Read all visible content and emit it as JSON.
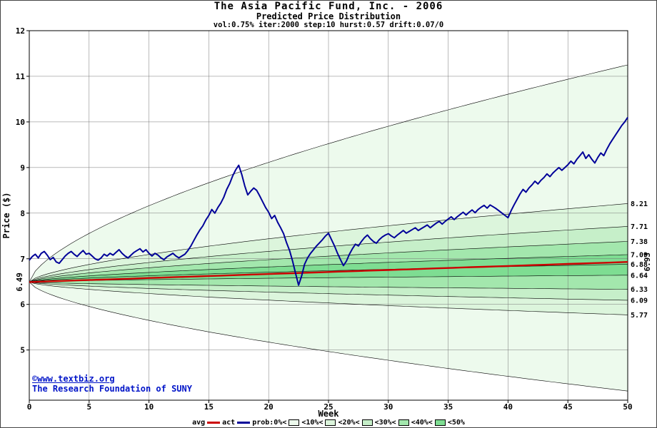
{
  "title": "The Asia Pacific Fund, Inc. - 2006",
  "subtitle": "Predicted Price Distribution",
  "params": "vol:0.75% iter:2000 step:10 hurst:0.57 drift:0.07/0",
  "watermark": {
    "line1": "©www.textbiz.org",
    "line2": "The Research Foundation of SUNY"
  },
  "legend": {
    "avg_label": "avg",
    "act_label": "act",
    "prob_label": "prob:0%<",
    "band_labels": [
      "<10%<",
      "<20%<",
      "<30%<",
      "<40%<",
      "<50%"
    ]
  },
  "chart_data": {
    "type": "line",
    "title": "The Asia Pacific Fund, Inc. - 2006",
    "subtitle": "Predicted Price Distribution",
    "xlabel": "Week",
    "ylabel": "Price ($)",
    "xlim": [
      0,
      50
    ],
    "ylim": [
      3.9,
      12
    ],
    "x_ticks": [
      0,
      5,
      10,
      15,
      20,
      25,
      30,
      35,
      40,
      45,
      50
    ],
    "y_ticks": [
      5,
      6,
      7,
      8,
      9,
      10,
      11,
      12
    ],
    "grid": true,
    "legend_position": "bottom",
    "start_price": 6.49,
    "start_label": "6.49",
    "avg_end": 6.93,
    "avg_end_label": "6.93",
    "envelope_end": [
      11.25,
      4.1
    ],
    "band_ends": [
      8.21,
      7.71,
      7.38,
      7.09,
      6.88,
      6.64,
      6.33,
      6.09,
      5.77
    ],
    "band_end_labels": [
      "8.21",
      "7.71",
      "7.38",
      "7.09",
      "6.88",
      "6.64",
      "6.33",
      "6.09",
      "5.77"
    ],
    "fan_exponent": 0.65,
    "band_colors": [
      "#edfaed",
      "#dcf5dc",
      "#c6efc9",
      "#a3e7ad",
      "#7edd92"
    ],
    "avg_color": "#cc0000",
    "act_color": "#000099",
    "series": [
      {
        "name": "avg",
        "start": 6.49,
        "end": 6.93
      },
      {
        "name": "act",
        "points_key": "actual_series"
      }
    ],
    "actual_series": [
      [
        0,
        6.97
      ],
      [
        0.25,
        7.05
      ],
      [
        0.5,
        7.1
      ],
      [
        0.75,
        7.02
      ],
      [
        1,
        7.12
      ],
      [
        1.25,
        7.16
      ],
      [
        1.5,
        7.08
      ],
      [
        1.75,
        6.98
      ],
      [
        2,
        7.03
      ],
      [
        2.25,
        6.93
      ],
      [
        2.5,
        6.9
      ],
      [
        2.75,
        6.98
      ],
      [
        3,
        7.06
      ],
      [
        3.25,
        7.12
      ],
      [
        3.5,
        7.16
      ],
      [
        3.75,
        7.1
      ],
      [
        4,
        7.05
      ],
      [
        4.25,
        7.12
      ],
      [
        4.5,
        7.18
      ],
      [
        4.75,
        7.1
      ],
      [
        5,
        7.12
      ],
      [
        5.25,
        7.06
      ],
      [
        5.5,
        7.0
      ],
      [
        5.75,
        6.97
      ],
      [
        6,
        7.02
      ],
      [
        6.25,
        7.1
      ],
      [
        6.5,
        7.06
      ],
      [
        6.75,
        7.12
      ],
      [
        7,
        7.08
      ],
      [
        7.25,
        7.14
      ],
      [
        7.5,
        7.2
      ],
      [
        7.75,
        7.12
      ],
      [
        8,
        7.06
      ],
      [
        8.25,
        7.02
      ],
      [
        8.5,
        7.08
      ],
      [
        8.75,
        7.14
      ],
      [
        9,
        7.18
      ],
      [
        9.25,
        7.22
      ],
      [
        9.5,
        7.15
      ],
      [
        9.75,
        7.2
      ],
      [
        10,
        7.12
      ],
      [
        10.25,
        7.06
      ],
      [
        10.5,
        7.12
      ],
      [
        10.75,
        7.08
      ],
      [
        11,
        7.02
      ],
      [
        11.25,
        6.98
      ],
      [
        11.5,
        7.04
      ],
      [
        11.75,
        7.08
      ],
      [
        12,
        7.12
      ],
      [
        12.25,
        7.06
      ],
      [
        12.5,
        7.02
      ],
      [
        12.75,
        7.06
      ],
      [
        13,
        7.1
      ],
      [
        13.25,
        7.18
      ],
      [
        13.5,
        7.28
      ],
      [
        13.75,
        7.4
      ],
      [
        14,
        7.52
      ],
      [
        14.25,
        7.63
      ],
      [
        14.5,
        7.72
      ],
      [
        14.75,
        7.85
      ],
      [
        15,
        7.95
      ],
      [
        15.25,
        8.08
      ],
      [
        15.5,
        8.0
      ],
      [
        15.75,
        8.12
      ],
      [
        16,
        8.22
      ],
      [
        16.25,
        8.35
      ],
      [
        16.5,
        8.52
      ],
      [
        16.75,
        8.65
      ],
      [
        17,
        8.82
      ],
      [
        17.25,
        8.95
      ],
      [
        17.5,
        9.05
      ],
      [
        17.75,
        8.85
      ],
      [
        18,
        8.6
      ],
      [
        18.25,
        8.4
      ],
      [
        18.5,
        8.48
      ],
      [
        18.75,
        8.55
      ],
      [
        19,
        8.5
      ],
      [
        19.25,
        8.38
      ],
      [
        19.5,
        8.25
      ],
      [
        19.75,
        8.12
      ],
      [
        20,
        8.02
      ],
      [
        20.25,
        7.88
      ],
      [
        20.5,
        7.95
      ],
      [
        20.75,
        7.8
      ],
      [
        21,
        7.68
      ],
      [
        21.25,
        7.55
      ],
      [
        21.5,
        7.35
      ],
      [
        21.75,
        7.18
      ],
      [
        22,
        6.95
      ],
      [
        22.25,
        6.68
      ],
      [
        22.5,
        6.42
      ],
      [
        22.75,
        6.62
      ],
      [
        23,
        6.88
      ],
      [
        23.25,
        7.02
      ],
      [
        23.5,
        7.12
      ],
      [
        23.75,
        7.2
      ],
      [
        24,
        7.28
      ],
      [
        24.25,
        7.35
      ],
      [
        24.5,
        7.42
      ],
      [
        24.75,
        7.5
      ],
      [
        25,
        7.56
      ],
      [
        25.25,
        7.42
      ],
      [
        25.5,
        7.28
      ],
      [
        25.75,
        7.12
      ],
      [
        26,
        6.98
      ],
      [
        26.25,
        6.85
      ],
      [
        26.5,
        6.95
      ],
      [
        26.75,
        7.1
      ],
      [
        27,
        7.22
      ],
      [
        27.25,
        7.32
      ],
      [
        27.5,
        7.28
      ],
      [
        27.75,
        7.38
      ],
      [
        28,
        7.46
      ],
      [
        28.25,
        7.52
      ],
      [
        28.5,
        7.44
      ],
      [
        28.75,
        7.38
      ],
      [
        29,
        7.34
      ],
      [
        29.25,
        7.42
      ],
      [
        29.5,
        7.48
      ],
      [
        29.75,
        7.52
      ],
      [
        30,
        7.55
      ],
      [
        30.25,
        7.5
      ],
      [
        30.5,
        7.46
      ],
      [
        30.75,
        7.52
      ],
      [
        31,
        7.57
      ],
      [
        31.25,
        7.62
      ],
      [
        31.5,
        7.56
      ],
      [
        31.75,
        7.6
      ],
      [
        32,
        7.64
      ],
      [
        32.25,
        7.68
      ],
      [
        32.5,
        7.62
      ],
      [
        32.75,
        7.66
      ],
      [
        33,
        7.7
      ],
      [
        33.25,
        7.74
      ],
      [
        33.5,
        7.68
      ],
      [
        33.75,
        7.73
      ],
      [
        34,
        7.78
      ],
      [
        34.25,
        7.82
      ],
      [
        34.5,
        7.76
      ],
      [
        34.75,
        7.82
      ],
      [
        35,
        7.87
      ],
      [
        35.25,
        7.92
      ],
      [
        35.5,
        7.86
      ],
      [
        35.75,
        7.92
      ],
      [
        36,
        7.97
      ],
      [
        36.25,
        8.02
      ],
      [
        36.5,
        7.96
      ],
      [
        36.75,
        8.02
      ],
      [
        37,
        8.07
      ],
      [
        37.25,
        8.01
      ],
      [
        37.5,
        8.08
      ],
      [
        37.75,
        8.13
      ],
      [
        38,
        8.17
      ],
      [
        38.25,
        8.11
      ],
      [
        38.5,
        8.18
      ],
      [
        38.75,
        8.14
      ],
      [
        39,
        8.1
      ],
      [
        39.25,
        8.05
      ],
      [
        39.5,
        8.0
      ],
      [
        39.75,
        7.95
      ],
      [
        40,
        7.9
      ],
      [
        40.25,
        8.05
      ],
      [
        40.5,
        8.18
      ],
      [
        40.75,
        8.3
      ],
      [
        41,
        8.42
      ],
      [
        41.25,
        8.52
      ],
      [
        41.5,
        8.46
      ],
      [
        41.75,
        8.55
      ],
      [
        42,
        8.62
      ],
      [
        42.25,
        8.7
      ],
      [
        42.5,
        8.64
      ],
      [
        42.75,
        8.72
      ],
      [
        43,
        8.78
      ],
      [
        43.25,
        8.86
      ],
      [
        43.5,
        8.8
      ],
      [
        43.75,
        8.88
      ],
      [
        44,
        8.94
      ],
      [
        44.25,
        9.0
      ],
      [
        44.5,
        8.94
      ],
      [
        44.75,
        9.0
      ],
      [
        45,
        9.06
      ],
      [
        45.25,
        9.14
      ],
      [
        45.5,
        9.08
      ],
      [
        45.75,
        9.18
      ],
      [
        46,
        9.26
      ],
      [
        46.25,
        9.34
      ],
      [
        46.5,
        9.2
      ],
      [
        46.75,
        9.28
      ],
      [
        47,
        9.18
      ],
      [
        47.25,
        9.1
      ],
      [
        47.5,
        9.22
      ],
      [
        47.75,
        9.32
      ],
      [
        48,
        9.26
      ],
      [
        48.25,
        9.4
      ],
      [
        48.5,
        9.52
      ],
      [
        48.75,
        9.62
      ],
      [
        49,
        9.72
      ],
      [
        49.25,
        9.82
      ],
      [
        49.5,
        9.92
      ],
      [
        49.75,
        10.0
      ],
      [
        50,
        10.1
      ]
    ]
  }
}
